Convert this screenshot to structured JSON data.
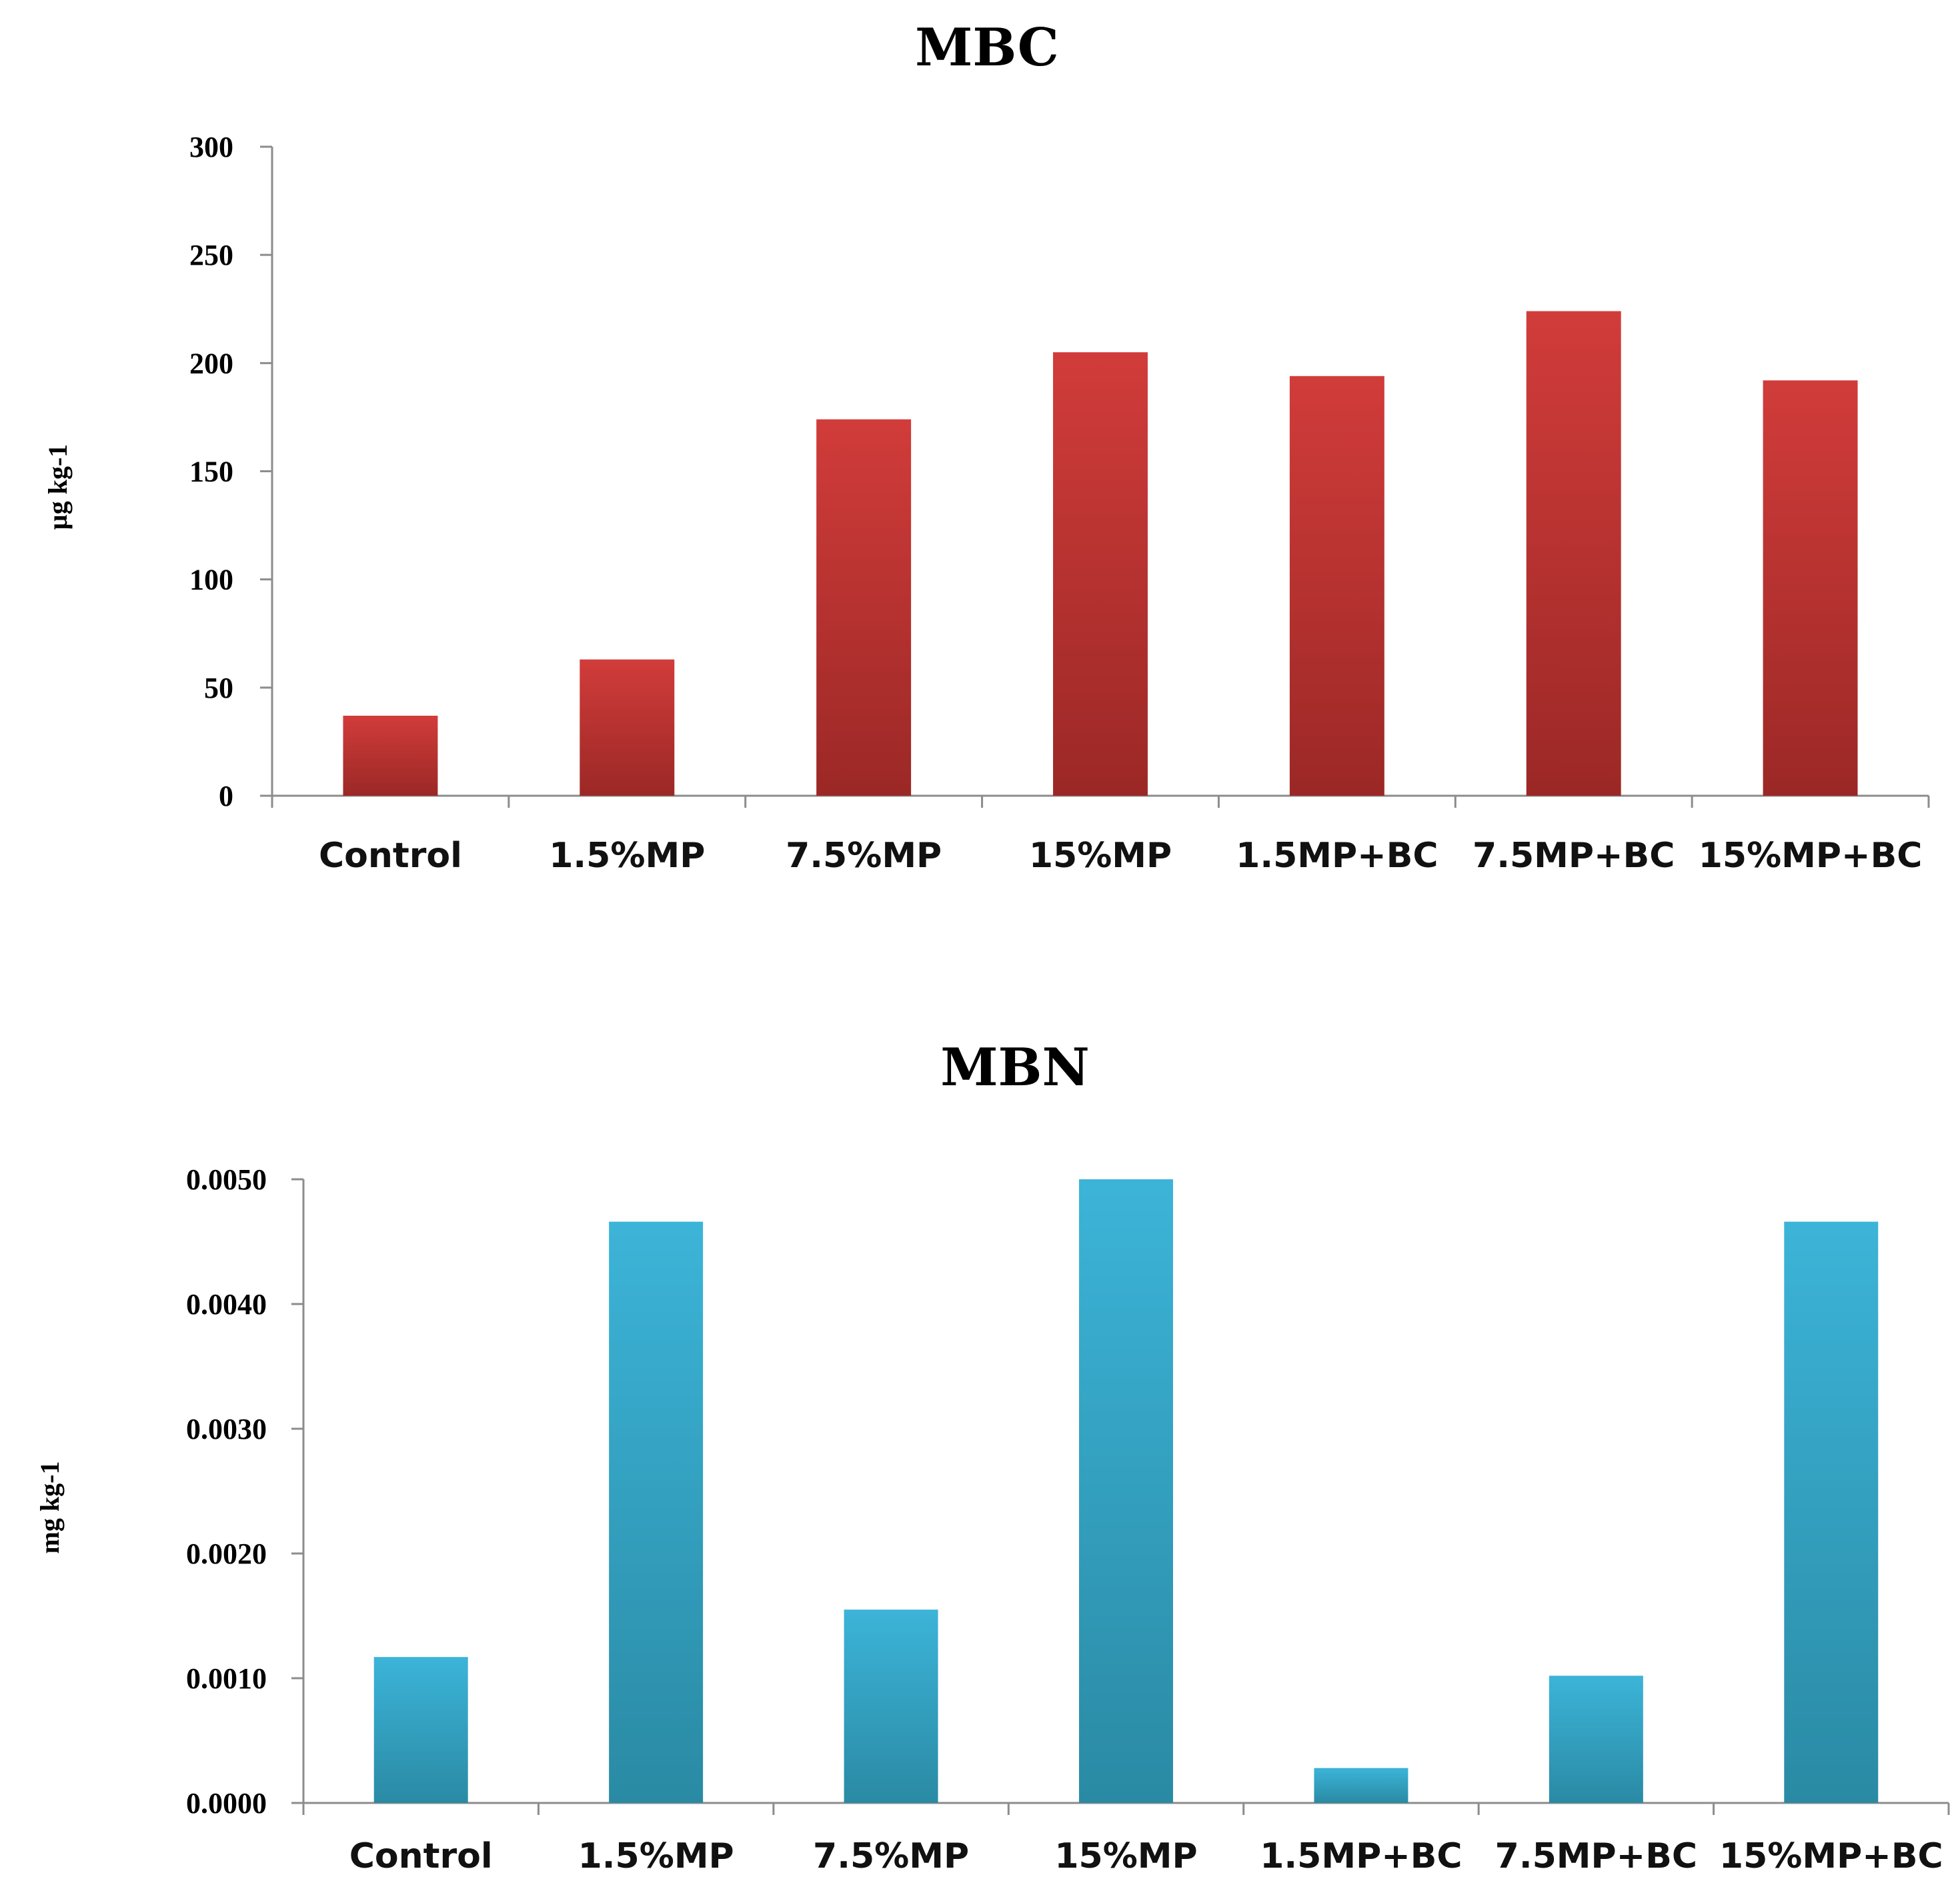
{
  "chart_data": [
    {
      "type": "bar",
      "title": "MBC",
      "categories": [
        "Control",
        "1.5%MP",
        "7.5%MP",
        "15%MP",
        "1.5MP+BC",
        "7.5MP+BC",
        "15%MP+BC"
      ],
      "values": [
        37,
        63,
        174,
        205,
        194,
        224,
        192
      ],
      "ylabel": "µg kg-1",
      "xlabel": "",
      "ylim": [
        0,
        300
      ],
      "yticks": [
        "0",
        "50",
        "100",
        "150",
        "200",
        "250",
        "300"
      ],
      "colors": {
        "top": "#d13c3a",
        "bottom": "#9b2826"
      }
    },
    {
      "type": "bar",
      "title": "MBN",
      "categories": [
        "Control",
        "1.5%MP",
        "7.5%MP",
        "15%MP",
        "1.5MP+BC",
        "7.5MP+BC",
        "15%MP+BC"
      ],
      "values": [
        0.00117,
        0.00466,
        0.00155,
        0.005,
        0.00028,
        0.00102,
        0.00466
      ],
      "ylabel": "mg kg-1",
      "xlabel": "",
      "ylim": [
        0,
        0.005
      ],
      "yticks": [
        "0.0000",
        "0.0010",
        "0.0020",
        "0.0030",
        "0.0040",
        "0.0050"
      ],
      "colors": {
        "top": "#3cb4d8",
        "bottom": "#2a8aa4"
      }
    }
  ]
}
